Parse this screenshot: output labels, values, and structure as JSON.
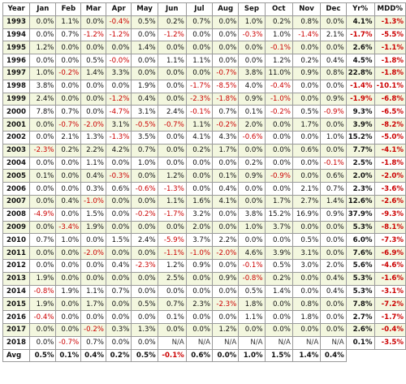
{
  "table": {
    "headers": [
      "Year",
      "Jan",
      "Feb",
      "Mar",
      "Apr",
      "May",
      "Jun",
      "Jul",
      "Aug",
      "Sep",
      "Oct",
      "Nov",
      "Dec",
      "Yr%",
      "MDD%"
    ],
    "rows": [
      {
        "year": "1993",
        "months": [
          "0.0%",
          "1.1%",
          "0.0%",
          "-0.4%",
          "0.5%",
          "0.2%",
          "0.7%",
          "0.0%",
          "1.0%",
          "0.2%",
          "0.8%",
          "0.0%"
        ],
        "yr": "4.1%",
        "mdd": "-1.3%"
      },
      {
        "year": "1994",
        "months": [
          "0.0%",
          "0.7%",
          "-1.2%",
          "-1.2%",
          "0.0%",
          "-1.2%",
          "0.0%",
          "0.0%",
          "-0.3%",
          "1.0%",
          "-1.4%",
          "2.1%"
        ],
        "yr": "-1.7%",
        "mdd": "-5.5%"
      },
      {
        "year": "1995",
        "months": [
          "1.2%",
          "0.0%",
          "0.0%",
          "0.0%",
          "1.4%",
          "0.0%",
          "0.0%",
          "0.0%",
          "0.0%",
          "-0.1%",
          "0.0%",
          "0.0%"
        ],
        "yr": "2.6%",
        "mdd": "-1.1%"
      },
      {
        "year": "1996",
        "months": [
          "0.0%",
          "0.0%",
          "0.5%",
          "-0.0%",
          "0.0%",
          "1.1%",
          "1.1%",
          "0.0%",
          "0.0%",
          "1.2%",
          "0.2%",
          "0.4%"
        ],
        "yr": "4.5%",
        "mdd": "-1.8%"
      },
      {
        "year": "1997",
        "months": [
          "1.0%",
          "-0.2%",
          "1.4%",
          "3.3%",
          "0.0%",
          "0.0%",
          "0.0%",
          "-0.7%",
          "3.8%",
          "11.0%",
          "0.9%",
          "0.8%"
        ],
        "yr": "22.8%",
        "mdd": "-1.8%"
      },
      {
        "year": "1998",
        "months": [
          "3.8%",
          "0.0%",
          "0.0%",
          "0.0%",
          "1.9%",
          "0.0%",
          "-1.7%",
          "-8.5%",
          "4.0%",
          "-0.4%",
          "0.0%",
          "0.0%"
        ],
        "yr": "-1.4%",
        "mdd": "-10.1%"
      },
      {
        "year": "1999",
        "months": [
          "2.4%",
          "0.0%",
          "0.0%",
          "-1.2%",
          "0.4%",
          "0.0%",
          "-2.3%",
          "-1.8%",
          "0.9%",
          "-1.0%",
          "0.0%",
          "0.9%"
        ],
        "yr": "-1.9%",
        "mdd": "-6.8%"
      },
      {
        "year": "2000",
        "months": [
          "7.8%",
          "0.7%",
          "0.0%",
          "-4.7%",
          "3.1%",
          "2.4%",
          "-0.1%",
          "0.7%",
          "0.1%",
          "-0.2%",
          "0.5%",
          "-0.9%"
        ],
        "yr": "9.3%",
        "mdd": "-6.5%"
      },
      {
        "year": "2001",
        "months": [
          "0.0%",
          "-0.7%",
          "-2.0%",
          "3.1%",
          "-0.5%",
          "-0.7%",
          "1.1%",
          "-0.2%",
          "2.0%",
          "0.0%",
          "1.7%",
          "0.0%"
        ],
        "yr": "3.9%",
        "mdd": "-8.2%"
      },
      {
        "year": "2002",
        "months": [
          "0.0%",
          "2.1%",
          "1.3%",
          "-1.3%",
          "3.5%",
          "0.0%",
          "4.1%",
          "4.3%",
          "-0.6%",
          "0.0%",
          "0.0%",
          "1.0%"
        ],
        "yr": "15.2%",
        "mdd": "-5.0%"
      },
      {
        "year": "2003",
        "months": [
          "-2.3%",
          "0.2%",
          "2.2%",
          "4.2%",
          "0.7%",
          "0.0%",
          "0.2%",
          "1.7%",
          "0.0%",
          "0.0%",
          "0.6%",
          "0.0%"
        ],
        "yr": "7.7%",
        "mdd": "-4.1%"
      },
      {
        "year": "2004",
        "months": [
          "0.0%",
          "0.0%",
          "1.1%",
          "0.0%",
          "1.0%",
          "0.0%",
          "0.0%",
          "0.0%",
          "0.2%",
          "0.0%",
          "0.0%",
          "-0.1%"
        ],
        "yr": "2.5%",
        "mdd": "-1.8%"
      },
      {
        "year": "2005",
        "months": [
          "0.1%",
          "0.0%",
          "0.4%",
          "-0.3%",
          "0.0%",
          "1.2%",
          "0.0%",
          "0.1%",
          "0.9%",
          "-0.9%",
          "0.0%",
          "0.6%"
        ],
        "yr": "2.0%",
        "mdd": "-2.0%"
      },
      {
        "year": "2006",
        "months": [
          "0.0%",
          "0.0%",
          "0.3%",
          "0.6%",
          "-0.6%",
          "-1.3%",
          "0.0%",
          "0.4%",
          "0.0%",
          "0.0%",
          "2.1%",
          "0.7%"
        ],
        "yr": "2.3%",
        "mdd": "-3.6%"
      },
      {
        "year": "2007",
        "months": [
          "0.0%",
          "0.4%",
          "-1.0%",
          "0.0%",
          "0.0%",
          "1.1%",
          "1.6%",
          "4.1%",
          "0.0%",
          "1.7%",
          "2.7%",
          "1.4%"
        ],
        "yr": "12.6%",
        "mdd": "-2.6%"
      },
      {
        "year": "2008",
        "months": [
          "-4.9%",
          "0.0%",
          "1.5%",
          "0.0%",
          "-0.2%",
          "-1.7%",
          "3.2%",
          "0.0%",
          "3.8%",
          "15.2%",
          "16.9%",
          "0.9%"
        ],
        "yr": "37.9%",
        "mdd": "-9.3%"
      },
      {
        "year": "2009",
        "months": [
          "0.0%",
          "-3.4%",
          "1.9%",
          "0.0%",
          "0.0%",
          "0.0%",
          "2.0%",
          "0.0%",
          "1.0%",
          "3.7%",
          "0.0%",
          "0.0%"
        ],
        "yr": "5.3%",
        "mdd": "-8.1%"
      },
      {
        "year": "2010",
        "months": [
          "0.7%",
          "1.0%",
          "0.0%",
          "1.5%",
          "2.4%",
          "-5.9%",
          "3.7%",
          "2.2%",
          "0.0%",
          "0.0%",
          "0.5%",
          "0.0%"
        ],
        "yr": "6.0%",
        "mdd": "-7.3%"
      },
      {
        "year": "2011",
        "months": [
          "0.0%",
          "0.0%",
          "-2.0%",
          "0.0%",
          "0.0%",
          "-1.1%",
          "-1.0%",
          "-2.0%",
          "4.6%",
          "3.9%",
          "3.1%",
          "0.0%"
        ],
        "yr": "7.6%",
        "mdd": "-6.9%"
      },
      {
        "year": "2012",
        "months": [
          "0.0%",
          "0.0%",
          "0.0%",
          "0.4%",
          "-2.3%",
          "1.2%",
          "0.9%",
          "0.0%",
          "-0.1%",
          "0.5%",
          "3.0%",
          "2.0%"
        ],
        "yr": "5.6%",
        "mdd": "-4.6%"
      },
      {
        "year": "2013",
        "months": [
          "1.9%",
          "0.0%",
          "0.0%",
          "0.0%",
          "0.0%",
          "2.5%",
          "0.0%",
          "0.9%",
          "-0.8%",
          "0.2%",
          "0.0%",
          "0.4%"
        ],
        "yr": "5.3%",
        "mdd": "-1.6%"
      },
      {
        "year": "2014",
        "months": [
          "-0.8%",
          "1.9%",
          "1.1%",
          "0.7%",
          "0.0%",
          "0.0%",
          "0.0%",
          "0.0%",
          "0.5%",
          "1.4%",
          "0.0%",
          "0.4%"
        ],
        "yr": "5.3%",
        "mdd": "-3.1%"
      },
      {
        "year": "2015",
        "months": [
          "1.9%",
          "0.0%",
          "1.7%",
          "0.0%",
          "0.5%",
          "0.7%",
          "2.3%",
          "-2.3%",
          "1.8%",
          "0.0%",
          "0.8%",
          "0.0%"
        ],
        "yr": "7.8%",
        "mdd": "-7.2%"
      },
      {
        "year": "2016",
        "months": [
          "-0.4%",
          "0.0%",
          "0.0%",
          "0.0%",
          "0.0%",
          "0.1%",
          "0.0%",
          "0.0%",
          "1.1%",
          "0.0%",
          "1.8%",
          "0.0%"
        ],
        "yr": "2.7%",
        "mdd": "-1.7%"
      },
      {
        "year": "2017",
        "months": [
          "0.0%",
          "0.0%",
          "-0.2%",
          "0.3%",
          "1.3%",
          "0.0%",
          "0.0%",
          "1.2%",
          "0.0%",
          "0.0%",
          "0.0%",
          "0.0%"
        ],
        "yr": "2.6%",
        "mdd": "-0.4%"
      },
      {
        "year": "2018",
        "months": [
          "0.0%",
          "-0.7%",
          "0.7%",
          "0.0%",
          "0.0%",
          "N/A",
          "N/A",
          "N/A",
          "N/A",
          "N/A",
          "N/A",
          "N/A"
        ],
        "yr": "0.1%",
        "mdd": "-3.5%"
      }
    ],
    "avg": {
      "label": "Avg",
      "months": [
        "0.5%",
        "0.1%",
        "0.4%",
        "0.2%",
        "0.5%",
        "-0.1%",
        "0.6%",
        "0.0%",
        "1.0%",
        "1.5%",
        "1.4%",
        "0.4%"
      ]
    }
  },
  "colors": {
    "negative": "#cc0000",
    "positive": "#111111",
    "stripe": "#f3f7df",
    "border": "#9a9a9a"
  }
}
